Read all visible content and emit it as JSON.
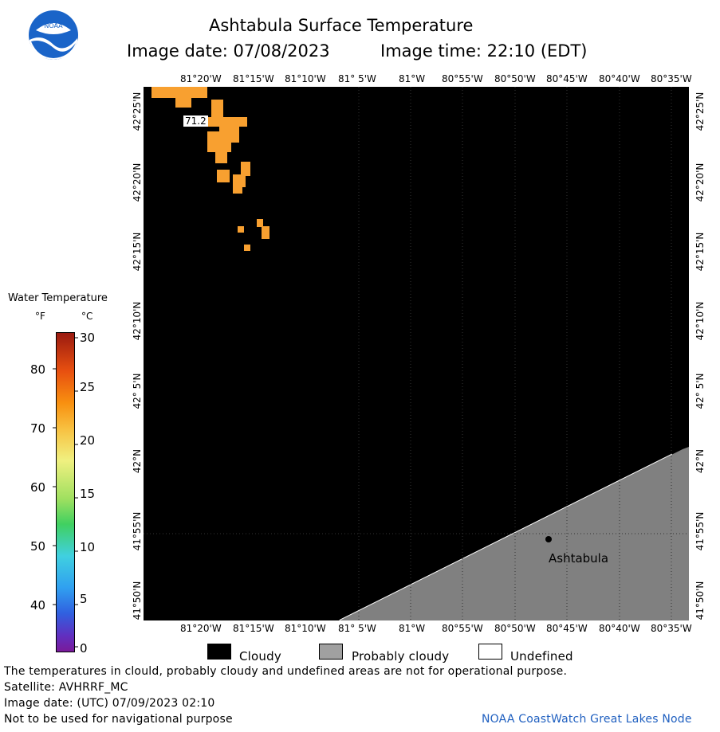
{
  "header": {
    "title": "Ashtabula Surface Temperature",
    "image_date": "Image date: 07/08/2023",
    "image_time": "Image time: 22:10 (EDT)"
  },
  "logo": {
    "text": "NOAA"
  },
  "map": {
    "lon_labels": [
      "81°20'W",
      "81°15'W",
      "81°10'W",
      "81° 5'W",
      "81°W",
      "80°55'W",
      "80°50'W",
      "80°45'W",
      "80°40'W",
      "80°35'W"
    ],
    "lat_labels": [
      "42°25'N",
      "42°20'N",
      "42°15'N",
      "42°10'N",
      "42° 5'N",
      "42°N",
      "41°55'N",
      "41°50'N"
    ],
    "place_label": "Ashtabula",
    "temp_label": "71.2",
    "colors": {
      "cloud": "#000000",
      "probably_cloudy": "#808080",
      "warm_water": "#f8a030"
    }
  },
  "colorbar": {
    "title": "Water Temperature",
    "unit_f": "°F",
    "unit_c": "°C",
    "f_ticks": [
      "80",
      "70",
      "60",
      "50",
      "40"
    ],
    "c_ticks": [
      "30",
      "25",
      "20",
      "15",
      "10",
      "5",
      "0"
    ]
  },
  "legend": {
    "cloudy": "Cloudy",
    "probably_cloudy": "Probably cloudy",
    "undefined": "Undefined"
  },
  "footer": {
    "warning": "The temperatures in clould, probably cloudy and undefined areas are not for operational purpose.",
    "satellite": "Satellite: AVHRRF_MC",
    "utc_date": "Image date: (UTC) 07/09/2023  02:10",
    "nav": "Not to be used for navigational purpose",
    "credit": "NOAA CoastWatch Great Lakes Node"
  }
}
